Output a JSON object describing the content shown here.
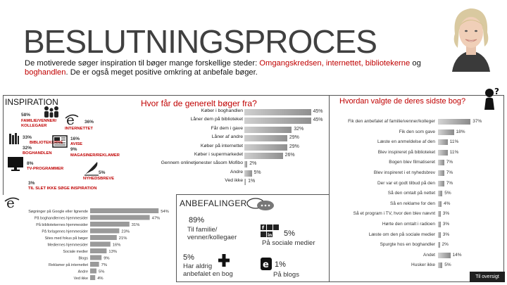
{
  "title": "BESLUTNINGSPROCES",
  "intro": {
    "p1": "De motiverede søger inspiration til bøger mange forskellige steder: ",
    "hl1": "Omgangskredsen, internettet, bibliotekerne",
    "p2": " og ",
    "hl2": "boghandlen",
    "p3": ". De er også meget positive omkring at anbefale bøger."
  },
  "inspiration": {
    "heading": "INSPIRATION",
    "items": [
      {
        "pct": "58%",
        "label": "FAMILIE/VENNER/ KOLLEGAER"
      },
      {
        "pct": "36%",
        "label": "INTERNETTET"
      },
      {
        "pct": "33%",
        "label": "BIBLIOTEKERNE"
      },
      {
        "pct": "32%",
        "label": "BOGHANDLEN"
      },
      {
        "pct": "16%",
        "label": "AVISE"
      },
      {
        "pct": "9%",
        "label": "MAGASINER/REKLAMER"
      },
      {
        "pct": "8%",
        "label": "TV-PROGRAMMER"
      },
      {
        "pct": "5%",
        "label": "NYHEDSBREVE"
      },
      {
        "pct": "3%",
        "label": "TIL SLET IKKE SØGE INSPIRATION"
      }
    ]
  },
  "internet_chart": {
    "rows": [
      {
        "label": "Søgninger på Google eller lignende",
        "value": "54%"
      },
      {
        "label": "På boghandlernes hjemmesider",
        "value": "47%"
      },
      {
        "label": "På bibliotekernes hjemmesider",
        "value": "31%"
      },
      {
        "label": "På forlagenes hjemmesider",
        "value": "23%"
      },
      {
        "label": "Sites med fokus på bøger",
        "value": "21%"
      },
      {
        "label": "Mediernes hjemmesider",
        "value": "16%"
      },
      {
        "label": "Sociale medier",
        "value": "13%"
      },
      {
        "label": "Blogs",
        "value": "9%"
      },
      {
        "label": "Reklamer på internettet",
        "value": "7%"
      },
      {
        "label": "Andre",
        "value": "5%"
      },
      {
        "label": "Ved ikke",
        "value": "4%"
      }
    ]
  },
  "mid_chart": {
    "question": "Hvor får de generelt bøger fra?",
    "rows": [
      {
        "label": "Køber i boghandlen",
        "value": "45%"
      },
      {
        "label": "Låner dem på biblioteket",
        "value": "45%"
      },
      {
        "label": "Får dem i gave",
        "value": "32%"
      },
      {
        "label": "Låner af andre",
        "value": "29%"
      },
      {
        "label": "Køber på internettet",
        "value": "29%"
      },
      {
        "label": "Køber i supermarkedet",
        "value": "26%"
      },
      {
        "label": "Gennem onlinetjenester såsom Mofibo",
        "value": "2%"
      },
      {
        "label": "Andre",
        "value": "5%"
      },
      {
        "label": "Ved ikke",
        "value": "1%"
      }
    ]
  },
  "right_chart": {
    "question": "Hvordan valgte de deres sidste bog?",
    "rows": [
      {
        "label": "Fik den anbefalet af familie/venner/kolleger",
        "value": "37%"
      },
      {
        "label": "Fik den som gave",
        "value": "18%"
      },
      {
        "label": "Læste en anmeldelse af den",
        "value": "11%"
      },
      {
        "label": "Blev inspireret på biblioteket",
        "value": "11%"
      },
      {
        "label": "Bogen blev filmatiseret",
        "value": "7%"
      },
      {
        "label": "Blev inspireret i et nyhedsbrev",
        "value": "7%"
      },
      {
        "label": "Der var et godt tilbud på den",
        "value": "7%"
      },
      {
        "label": "Så den omtalt på nettet",
        "value": "5%"
      },
      {
        "label": "Så en reklame for den",
        "value": "4%"
      },
      {
        "label": "Så et program i TV, hvor den blev nævnt",
        "value": "3%"
      },
      {
        "label": "Hørte den omtalt i radioen",
        "value": "3%"
      },
      {
        "label": "Læste om den på sociale medier",
        "value": "3%"
      },
      {
        "label": "Spurgte hos en boghandler",
        "value": "2%"
      },
      {
        "label": "Andet",
        "value": "14%"
      },
      {
        "label": "Husker ikke",
        "value": "5%"
      }
    ]
  },
  "recommendations": {
    "heading": "ANBEFALINGER",
    "items": [
      {
        "pct": "89%",
        "label": "Til familie/ venner/kollegaer"
      },
      {
        "pct": "5%",
        "label": "På sociale medier"
      },
      {
        "pct": "5%",
        "label": "Har aldrig anbefalet en bog"
      },
      {
        "pct": "1%",
        "label": "På blogs"
      }
    ]
  },
  "nav": {
    "overview": "Til oversigt"
  },
  "colors": {
    "accent_red": "#c00000",
    "bar_grey": "#8a8a8a",
    "dark": "#1f1f1f"
  }
}
